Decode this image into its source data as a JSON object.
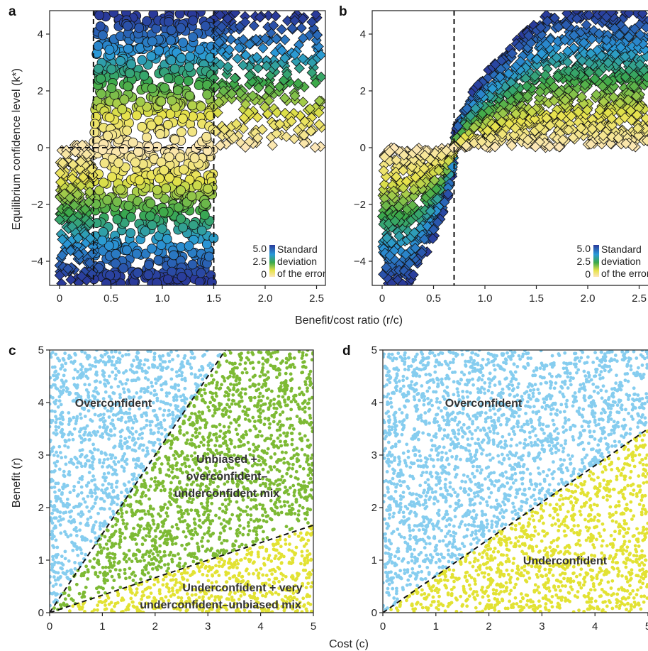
{
  "figure": {
    "shared_xlabel_top": "Benefit/cost ratio (r/c)",
    "shared_ylabel_top": "Equilibrium confidence level (k*)",
    "shared_xlabel_bottom": "Cost (c)",
    "shared_ylabel_bottom": "Benefit (r)"
  },
  "colorbar": {
    "labels": [
      "Standard",
      "deviation",
      "of the error"
    ],
    "ticks": [
      "5.0",
      "2.5",
      "0"
    ],
    "stops": [
      "#2a3a9a",
      "#2a9ad8",
      "#3aa84a",
      "#e6e24a",
      "#fde7b8"
    ]
  },
  "chart_data": [
    {
      "panel": "a",
      "type": "scatter",
      "x_ticks": [
        "0",
        "0.5",
        "1.0",
        "1.5",
        "2.0",
        "2.5"
      ],
      "y_ticks": [
        "4",
        "2",
        "0",
        "−2",
        "−4"
      ],
      "xlim": [
        -0.1,
        2.6
      ],
      "ylim": [
        -4.8,
        4.8
      ],
      "reference_lines": {
        "vertical": [
          0.33,
          1.5
        ],
        "horizontal": [
          0
        ]
      },
      "series": [
        {
          "marker": "circle",
          "description_x_range": [
            0.33,
            1.5
          ],
          "y_range": [
            -4.8,
            4.8
          ]
        },
        {
          "marker": "diamond",
          "description_x_range": [
            0.0,
            2.5
          ],
          "y_range": [
            -4.8,
            4.8
          ]
        }
      ]
    },
    {
      "panel": "b",
      "type": "scatter",
      "x_ticks": [
        "0",
        "0.5",
        "1.0",
        "1.5",
        "2.0",
        "2.5"
      ],
      "y_ticks": [
        "4",
        "2",
        "0",
        "−2",
        "−4"
      ],
      "xlim": [
        -0.1,
        2.6
      ],
      "ylim": [
        -4.8,
        4.8
      ],
      "reference_lines": {
        "vertical": [
          0.7
        ]
      },
      "series": [
        {
          "marker": "diamond",
          "description_x_range": [
            0.0,
            2.6
          ],
          "y_range": [
            -4.8,
            4.8
          ]
        }
      ]
    },
    {
      "panel": "c",
      "type": "scatter",
      "x_ticks": [
        "0",
        "1",
        "2",
        "3",
        "4",
        "5"
      ],
      "y_ticks": [
        "5",
        "4",
        "3",
        "2",
        "1",
        "0"
      ],
      "xlim": [
        0,
        5
      ],
      "ylim": [
        0,
        5
      ],
      "boundaries": [
        {
          "slope": 1.5,
          "intercept": 0
        },
        {
          "slope": 0.333,
          "intercept": 0
        }
      ],
      "regions": [
        {
          "label": "Overconfident",
          "color": "#86cdef",
          "rule": "r > 1.5c"
        },
        {
          "label_lines": [
            "Unbiased +",
            "overconfident–",
            "underconfident mix"
          ],
          "color": "#7dba34",
          "rule": "c/3 < r < 1.5c"
        },
        {
          "label_lines": [
            "Underconfident + very",
            "underconfident–unbiased mix"
          ],
          "color": "#e2e233",
          "rule": "r < c/3"
        }
      ]
    },
    {
      "panel": "d",
      "type": "scatter",
      "x_ticks": [
        "0",
        "1",
        "2",
        "3",
        "4",
        "5"
      ],
      "y_ticks": [
        "5",
        "4",
        "3",
        "2",
        "1",
        "0"
      ],
      "xlim": [
        0,
        5
      ],
      "ylim": [
        0,
        5
      ],
      "boundaries": [
        {
          "slope": 0.7,
          "intercept": 0
        }
      ],
      "regions": [
        {
          "label": "Overconfident",
          "color": "#86cdef",
          "rule": "r > 0.7c"
        },
        {
          "label": "Underconfident",
          "color": "#e2e233",
          "rule": "r < 0.7c"
        }
      ]
    }
  ]
}
